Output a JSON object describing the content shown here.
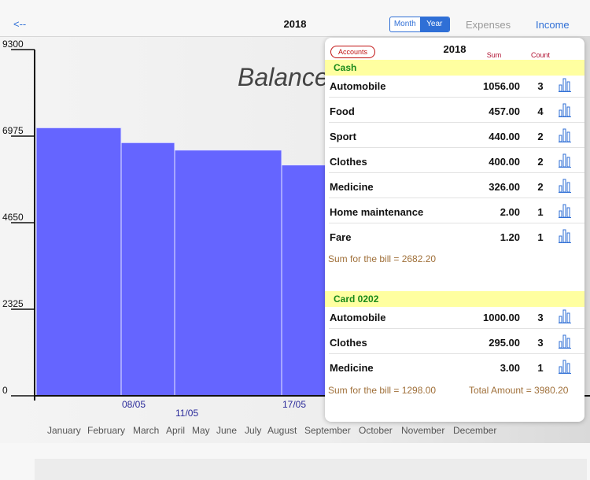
{
  "nav": {
    "back_label": "<--",
    "title": "2018",
    "segment_month": "Month",
    "segment_year": "Year",
    "tab_expenses": "Expenses",
    "tab_income": "Income"
  },
  "colors": {
    "accent": "#2f6fd6",
    "bar_fill": "#6565ff",
    "section_bg": "#ffffa0",
    "section_text": "#1a8a1a",
    "sum_text": "#a0703a",
    "header_red": "#c01010"
  },
  "chart_data": {
    "type": "bar",
    "title": "Balance",
    "y_ticks": [
      0,
      2325,
      4650,
      6975,
      9300
    ],
    "ylim": [
      0,
      9300
    ],
    "bars": [
      {
        "value": 7200,
        "label": ""
      },
      {
        "value": 6800,
        "label": "08/05"
      },
      {
        "value": 6600,
        "label": "11/05"
      },
      {
        "value": 6200,
        "label": "17/05"
      }
    ],
    "x_labels": [
      "January",
      "February",
      "March",
      "April",
      "May",
      "June",
      "July",
      "August",
      "September",
      "October",
      "November",
      "December"
    ]
  },
  "panel": {
    "accounts_label": "Accounts",
    "year": "2018",
    "col_sum": "Sum",
    "col_count": "Count",
    "sections": [
      {
        "name": "Cash",
        "rows": [
          {
            "name": "Automobile",
            "sum": "1056.00",
            "count": "3"
          },
          {
            "name": "Food",
            "sum": "457.00",
            "count": "4"
          },
          {
            "name": "Sport",
            "sum": "440.00",
            "count": "2"
          },
          {
            "name": "Clothes",
            "sum": "400.00",
            "count": "2"
          },
          {
            "name": "Medicine",
            "sum": "326.00",
            "count": "2"
          },
          {
            "name": "Home maintenance",
            "sum": "2.00",
            "count": "1"
          },
          {
            "name": "Fare",
            "sum": "1.20",
            "count": "1"
          }
        ],
        "bill_sum": "Sum for the bill =  2682.20"
      },
      {
        "name": "Card 0202",
        "rows": [
          {
            "name": "Automobile",
            "sum": "1000.00",
            "count": "3"
          },
          {
            "name": "Clothes",
            "sum": "295.00",
            "count": "3"
          },
          {
            "name": "Medicine",
            "sum": "3.00",
            "count": "1"
          }
        ],
        "bill_sum": "Sum for the bill =  1298.00"
      }
    ],
    "total_amount": "Total Amount = 3980.20"
  }
}
